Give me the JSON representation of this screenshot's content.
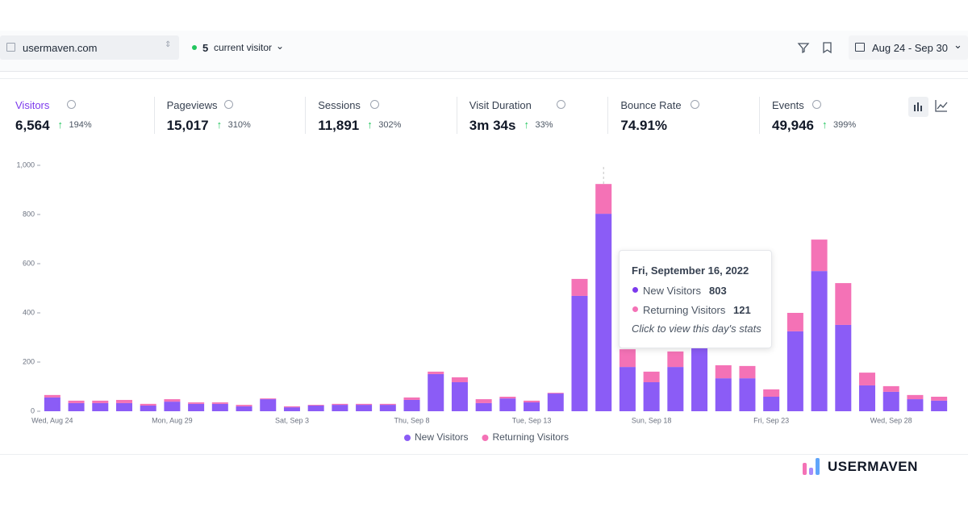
{
  "header": {
    "site": "usermaven.com",
    "live_count": "5",
    "live_label": "current visitor",
    "date_range": "Aug 24 - Sep 30"
  },
  "metrics": [
    {
      "label": "Visitors",
      "value": "6,564",
      "change": "194%"
    },
    {
      "label": "Pageviews",
      "value": "15,017",
      "change": "310%"
    },
    {
      "label": "Sessions",
      "value": "11,891",
      "change": "302%"
    },
    {
      "label": "Visit Duration",
      "value": "3m 34s",
      "change": "33%"
    },
    {
      "label": "Bounce Rate",
      "value": "74.91%"
    },
    {
      "label": "Events",
      "value": "49,946",
      "change": "399%"
    }
  ],
  "chart_data": {
    "type": "bar",
    "stacked": true,
    "categories": [
      "Wed, Aug 24",
      null,
      null,
      null,
      null,
      "Mon, Aug 29",
      null,
      null,
      null,
      null,
      "Sat, Sep 3",
      null,
      null,
      null,
      null,
      "Thu, Sep 8",
      null,
      null,
      null,
      null,
      "Tue, Sep 13",
      null,
      null,
      null,
      null,
      "Sun, Sep 18",
      null,
      null,
      null,
      null,
      "Fri, Sep 23",
      null,
      null,
      null,
      null,
      "Wed, Sep 28",
      null,
      null
    ],
    "series": [
      {
        "name": "New Visitors",
        "color": "#8b5cf6",
        "values": [
          56,
          33,
          33,
          33,
          23,
          39,
          30,
          30,
          20,
          49,
          16,
          23,
          26,
          26,
          26,
          46,
          151,
          118,
          33,
          52,
          36,
          72,
          469,
          803,
          180,
          118,
          180,
          265,
          134,
          134,
          59,
          325,
          570,
          351,
          105,
          79,
          49,
          43
        ]
      },
      {
        "name": "Returning Visitors",
        "color": "#f472b6",
        "values": [
          10,
          10,
          10,
          13,
          7,
          10,
          6,
          6,
          6,
          3,
          4,
          3,
          4,
          4,
          4,
          10,
          10,
          20,
          16,
          7,
          7,
          3,
          69,
          121,
          72,
          43,
          63,
          35,
          53,
          50,
          30,
          75,
          128,
          170,
          52,
          23,
          17,
          16
        ]
      }
    ],
    "ylim": [
      0,
      1000
    ],
    "yticks": [
      0,
      200,
      400,
      600,
      800,
      {
        "value": 1000,
        "label": "1,000"
      }
    ],
    "grid": false,
    "legend": "bottom"
  },
  "tooltip": {
    "title": "Fri, September 16, 2022",
    "hint": "Click to view this day's stats"
  },
  "brand": "USERMAVEN"
}
